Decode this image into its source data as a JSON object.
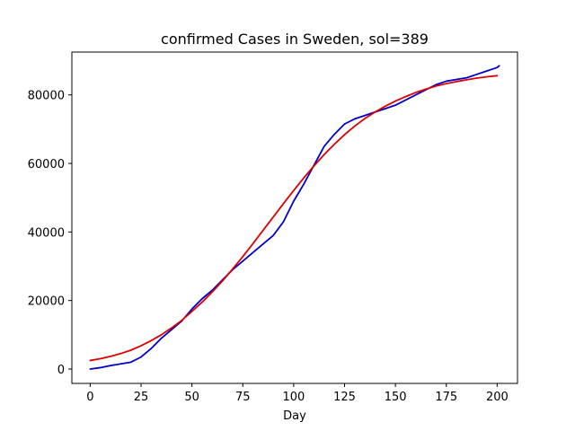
{
  "chart_data": {
    "type": "line",
    "title": "confirmed Cases in Sweden, sol=389",
    "xlabel": "Day",
    "ylabel": "",
    "xlim": [
      -9,
      210
    ],
    "ylim": [
      -4200,
      92500
    ],
    "xticks": [
      0,
      25,
      50,
      75,
      100,
      125,
      150,
      175,
      200
    ],
    "yticks": [
      0,
      20000,
      40000,
      60000,
      80000
    ],
    "grid": false,
    "colors": {
      "observed": "#0000cc",
      "fit": "#dd0000"
    },
    "series": [
      {
        "key": "observed",
        "x": [
          0,
          5,
          10,
          15,
          20,
          25,
          30,
          35,
          40,
          45,
          50,
          55,
          60,
          65,
          70,
          75,
          80,
          85,
          90,
          95,
          100,
          105,
          110,
          115,
          120,
          125,
          130,
          135,
          140,
          145,
          150,
          155,
          160,
          165,
          170,
          175,
          180,
          185,
          190,
          195,
          200,
          201
        ],
        "y": [
          0,
          400,
          1000,
          1500,
          2000,
          3500,
          6000,
          9000,
          11500,
          14000,
          17500,
          20500,
          23000,
          26000,
          29000,
          31500,
          34000,
          36500,
          39000,
          43000,
          49000,
          54000,
          59500,
          65000,
          68500,
          71500,
          73000,
          74000,
          75000,
          76000,
          77000,
          78500,
          80000,
          81500,
          83000,
          84000,
          84500,
          85000,
          86000,
          87000,
          88000,
          88500
        ]
      },
      {
        "key": "fit",
        "x": [
          0,
          5,
          10,
          15,
          20,
          25,
          30,
          35,
          40,
          45,
          50,
          55,
          60,
          65,
          70,
          75,
          80,
          85,
          90,
          95,
          100,
          105,
          110,
          115,
          120,
          125,
          130,
          135,
          140,
          145,
          150,
          155,
          160,
          165,
          170,
          175,
          180,
          185,
          190,
          195,
          200
        ],
        "y": [
          2500,
          3000,
          3700,
          4500,
          5500,
          6800,
          8300,
          10000,
          12000,
          14200,
          16800,
          19500,
          22500,
          25700,
          29200,
          32800,
          36600,
          40500,
          44400,
          48300,
          52100,
          55800,
          59300,
          62600,
          65600,
          68400,
          70900,
          73100,
          75000,
          76700,
          78200,
          79500,
          80700,
          81700,
          82600,
          83300,
          83900,
          84400,
          84900,
          85300,
          85600
        ]
      }
    ]
  }
}
